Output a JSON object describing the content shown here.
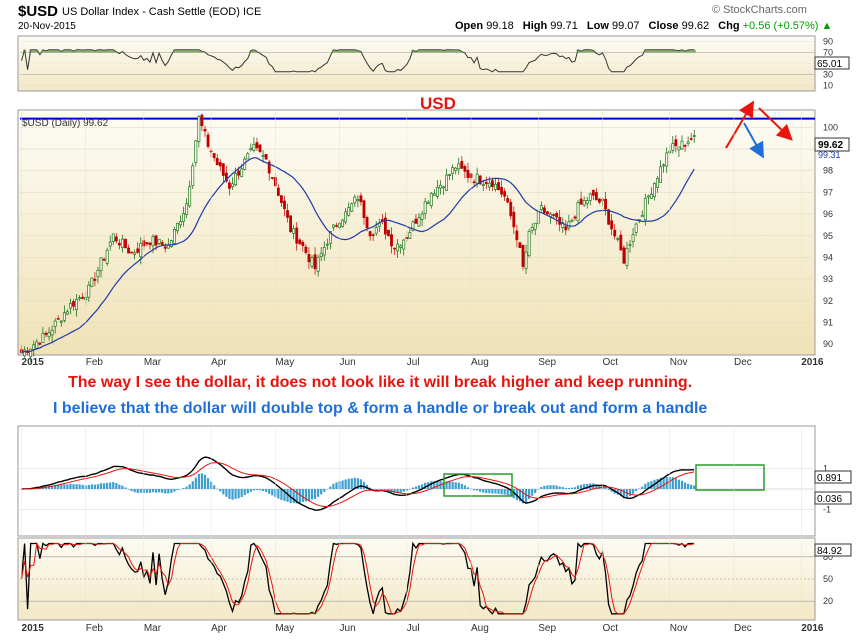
{
  "header": {
    "symbol": "$USD",
    "description": "US Dollar Index - Cash Settle (EOD)",
    "exchange": "ICE",
    "date": "20-Nov-2015",
    "brand": "© StockCharts.com",
    "open_label": "Open",
    "open": "99.18",
    "high_label": "High",
    "high": "99.71",
    "low_label": "Low",
    "low": "99.07",
    "close_label": "Close",
    "close": "99.62",
    "chg_label": "Chg",
    "chg": "+0.56 (+0.57%)",
    "chg_arrow": "▲"
  },
  "colors": {
    "price_bg_top": "#fdfdf6",
    "price_bg_bottom": "#f2e6bf",
    "resistance": "#0000cc",
    "up": "#006400",
    "down": "#c00000",
    "ma": "#1f3aa8",
    "red_text": "#e8140f",
    "blue_text": "#1f6fd8",
    "macd_hist": "#3c9fd0",
    "box": "#2a9b2a"
  },
  "chart_data": [
    {
      "type": "line",
      "name": "rsi-panel",
      "yticks": [
        90,
        70,
        50,
        30,
        10
      ],
      "last_value": "65.01",
      "ylim": [
        0,
        100
      ]
    },
    {
      "type": "candlestick",
      "name": "price-panel",
      "legend": "$USD (Daily) 99.62",
      "title_annotation": "USD",
      "yticks": [
        90,
        91,
        92,
        93,
        94,
        95,
        96,
        97,
        98,
        99,
        100
      ],
      "ylim": [
        89.5,
        100.8
      ],
      "last_price": "99.62",
      "ma_value": "99.31",
      "resistance_level": 100.4,
      "xticks": [
        "2015",
        "Feb",
        "Mar",
        "Apr",
        "May",
        "Jun",
        "Jul",
        "Aug",
        "Sep",
        "Oct",
        "Nov",
        "Dec",
        "2016"
      ],
      "close_anchors": [
        [
          0,
          89.6
        ],
        [
          8,
          90.4
        ],
        [
          16,
          91.8
        ],
        [
          22,
          92.5
        ],
        [
          30,
          95.0
        ],
        [
          36,
          94.2
        ],
        [
          42,
          94.8
        ],
        [
          48,
          94.5
        ],
        [
          54,
          96.5
        ],
        [
          58,
          100.4
        ],
        [
          61,
          99.2
        ],
        [
          64,
          98.3
        ],
        [
          68,
          97.3
        ],
        [
          72,
          98.2
        ],
        [
          76,
          99.0
        ],
        [
          80,
          98.5
        ],
        [
          84,
          97.0
        ],
        [
          88,
          95.3
        ],
        [
          92,
          94.5
        ],
        [
          96,
          93.5
        ],
        [
          100,
          94.8
        ],
        [
          104,
          95.8
        ],
        [
          106,
          96.0
        ],
        [
          110,
          96.8
        ],
        [
          114,
          95.2
        ],
        [
          118,
          95.5
        ],
        [
          122,
          94.5
        ],
        [
          126,
          95.0
        ],
        [
          130,
          96.0
        ],
        [
          134,
          97.0
        ],
        [
          138,
          97.5
        ],
        [
          142,
          98.2
        ],
        [
          146,
          97.8
        ],
        [
          150,
          97.6
        ],
        [
          154,
          97.5
        ],
        [
          158,
          96.8
        ],
        [
          162,
          95.0
        ],
        [
          164,
          93.5
        ],
        [
          166,
          95.0
        ],
        [
          170,
          96.2
        ],
        [
          174,
          95.8
        ],
        [
          178,
          95.2
        ],
        [
          182,
          96.3
        ],
        [
          186,
          96.8
        ],
        [
          190,
          96.5
        ],
        [
          194,
          95.0
        ],
        [
          197,
          93.9
        ],
        [
          200,
          95.2
        ],
        [
          204,
          96.5
        ],
        [
          208,
          97.8
        ],
        [
          212,
          99.0
        ],
        [
          216,
          99.2
        ],
        [
          220,
          99.62
        ]
      ]
    },
    {
      "type": "line",
      "name": "macd-panel",
      "yticks": [
        "1",
        "-1"
      ],
      "macd_value": "0.891",
      "signal_value": "0.036"
    },
    {
      "type": "line",
      "name": "stochastic-panel",
      "yticks": [
        80,
        50,
        20
      ],
      "last_value": "84.92",
      "ylim": [
        0,
        100
      ]
    }
  ],
  "annotations": {
    "line1": "The way I see the dollar,  it does not look like it will break higher and keep running.",
    "line2": "I believe that the dollar will double top & form a handle or break out and form a handle"
  }
}
